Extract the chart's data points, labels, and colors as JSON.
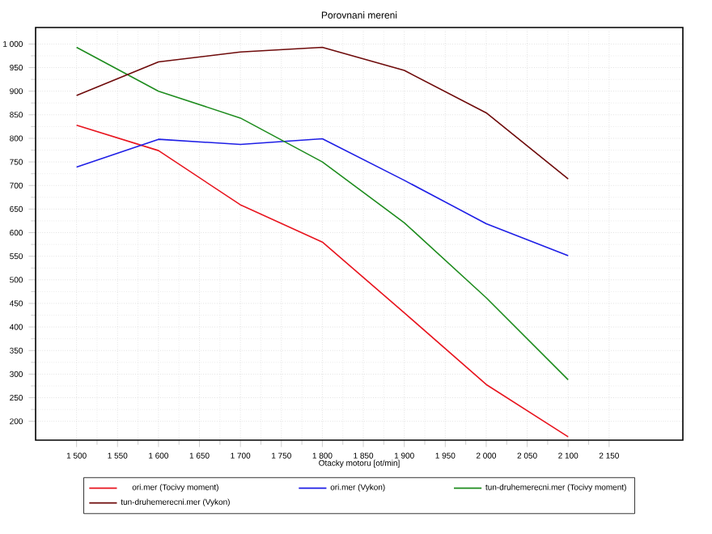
{
  "chart_data": {
    "type": "line",
    "title": "Porovnani mereni",
    "xlabel": "Otacky motoru [ot/min]",
    "x": [
      1500,
      1600,
      1700,
      1800,
      1900,
      2000,
      2100
    ],
    "series": [
      {
        "name": "ori.mer  (Tocivy moment)",
        "color": "#e8141e",
        "values": [
          828,
          774,
          659,
          580,
          430,
          278,
          167
        ]
      },
      {
        "name": "ori.mer  (Vykon)",
        "color": "#1e1ee6",
        "values": [
          739,
          798,
          787,
          799,
          711,
          619,
          551
        ]
      },
      {
        "name": "tun-druhemerecni.mer  (Tocivy moment)",
        "color": "#1e8c1e",
        "values": [
          993,
          900,
          843,
          750,
          621,
          462,
          288
        ]
      },
      {
        "name": "tun-druhemerecni.mer  (Vykon)",
        "color": "#6e0a0a",
        "values": [
          891,
          962,
          983,
          993,
          944,
          854,
          714
        ]
      }
    ],
    "xlim": [
      1450,
      2240
    ],
    "xticks": [
      {
        "value": 1500,
        "label": "1 500"
      },
      {
        "value": 1550,
        "label": "1 550"
      },
      {
        "value": 1600,
        "label": "1 600"
      },
      {
        "value": 1650,
        "label": "1 650"
      },
      {
        "value": 1700,
        "label": "1 700"
      },
      {
        "value": 1750,
        "label": "1 750"
      },
      {
        "value": 1800,
        "label": "1 800"
      },
      {
        "value": 1850,
        "label": "1 850"
      },
      {
        "value": 1900,
        "label": "1 900"
      },
      {
        "value": 1950,
        "label": "1 950"
      },
      {
        "value": 2000,
        "label": "2 000"
      },
      {
        "value": 2050,
        "label": "2 050"
      },
      {
        "value": 2100,
        "label": "2 100"
      },
      {
        "value": 2150,
        "label": "2 150"
      }
    ],
    "ylim": [
      160,
      1035
    ],
    "yticks": [
      200,
      250,
      300,
      350,
      400,
      450,
      500,
      550,
      600,
      650,
      700,
      750,
      800,
      850,
      900,
      950,
      {
        "value": 1000,
        "label": "1 000"
      }
    ],
    "grid": true,
    "legend": "bottom",
    "marker": "none",
    "line_style": "solid"
  }
}
